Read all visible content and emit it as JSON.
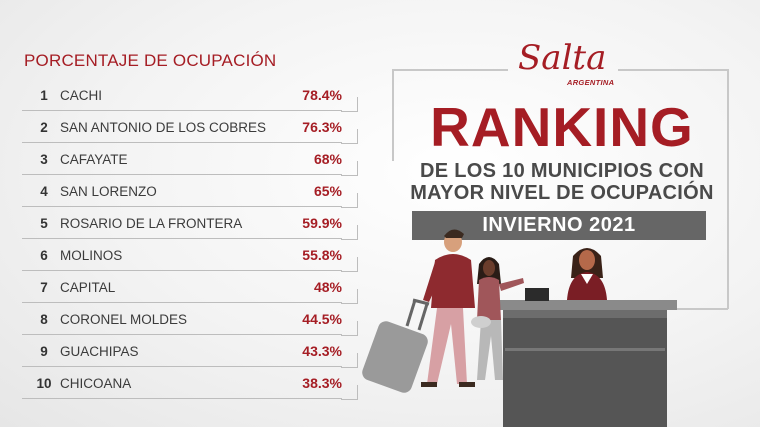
{
  "chart_data": {
    "type": "table",
    "header": "PORCENTAJE DE OCUPACIÓN",
    "rows": [
      {
        "rank": "1",
        "name": "CACHI",
        "value_label": "78.4%",
        "value": 78.4
      },
      {
        "rank": "2",
        "name": "SAN ANTONIO DE LOS COBRES",
        "value_label": "76.3%",
        "value": 76.3
      },
      {
        "rank": "3",
        "name": "CAFAYATE",
        "value_label": "68%",
        "value": 68
      },
      {
        "rank": "4",
        "name": "SAN LORENZO",
        "value_label": "65%",
        "value": 65
      },
      {
        "rank": "5",
        "name": "ROSARIO DE LA FRONTERA",
        "value_label": "59.9%",
        "value": 59.9
      },
      {
        "rank": "6",
        "name": "MOLINOS",
        "value_label": "55.8%",
        "value": 55.8
      },
      {
        "rank": "7",
        "name": "CAPITAL",
        "value_label": "48%",
        "value": 48
      },
      {
        "rank": "8",
        "name": "CORONEL MOLDES",
        "value_label": "44.5%",
        "value": 44.5
      },
      {
        "rank": "9",
        "name": "GUACHIPAS",
        "value_label": "43.3%",
        "value": 43.3
      },
      {
        "rank": "10",
        "name": "CHICOANA",
        "value_label": "38.3%",
        "value": 38.3
      }
    ]
  },
  "logo": {
    "script": "Salta",
    "sub": "ARGENTINA"
  },
  "title": {
    "main": "RANKING",
    "line1": "DE LOS 10 MUNICIPIOS CON",
    "line2": "MAYOR NIVEL DE OCUPACIÓN",
    "season": "INVIERNO 2021"
  },
  "colors": {
    "accent": "#a51d24",
    "text": "#3b3b3b",
    "bar": "#666666"
  }
}
